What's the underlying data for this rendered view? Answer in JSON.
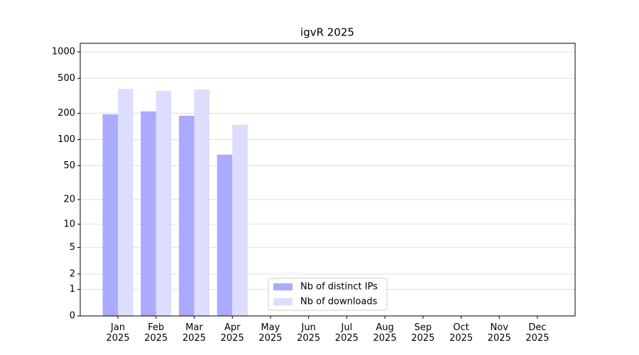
{
  "chart_data": {
    "type": "bar",
    "title": "igvR 2025",
    "scale": "log1p",
    "categories": [
      "Jan 2025",
      "Feb 2025",
      "Mar 2025",
      "Apr 2025",
      "May 2025",
      "Jun 2025",
      "Jul 2025",
      "Aug 2025",
      "Sep 2025",
      "Oct 2025",
      "Nov 2025",
      "Dec 2025"
    ],
    "series": [
      {
        "name": "Nb of distinct IPs",
        "color": "#aaaaff",
        "values": [
          194,
          210,
          187,
          67,
          null,
          null,
          null,
          null,
          null,
          null,
          null,
          null
        ]
      },
      {
        "name": "Nb of downloads",
        "color": "#ddddff",
        "values": [
          379,
          360,
          373,
          147,
          null,
          null,
          null,
          null,
          null,
          null,
          null,
          null
        ]
      }
    ],
    "ylim": [
      0,
      1250
    ],
    "yticks": [
      0,
      1,
      2,
      5,
      10,
      20,
      50,
      100,
      200,
      500,
      1000
    ],
    "grid": true,
    "legend": "lower center"
  }
}
